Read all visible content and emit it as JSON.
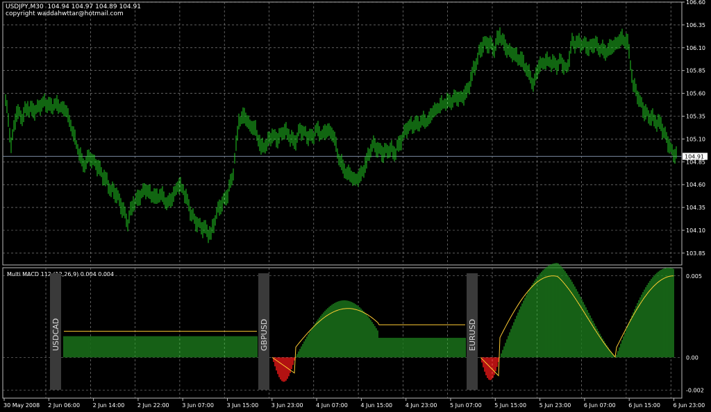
{
  "header": {
    "symbol_line": "USDJPY,M30  104.94 104.97 104.89 104.91",
    "copyright": "copyright waddahwttar@hotmail.com"
  },
  "colors": {
    "background": "#000000",
    "grid": "#9a9a9a",
    "price_bars": "#22cc22",
    "histogram": "#1f8a1f",
    "histogram_negative": "#ff1a1a",
    "signal": "#ffcc33",
    "separator": "#3a3a3a",
    "price_line": "#7a8aa0"
  },
  "price_chart": {
    "type": "bar",
    "ylim": [
      103.72,
      106.6
    ],
    "y_ticks": [
      "106.60",
      "106.35",
      "106.10",
      "105.85",
      "105.60",
      "105.35",
      "105.10",
      "104.85",
      "104.60",
      "104.35",
      "104.10",
      "103.85"
    ],
    "current_price": "104.91",
    "bars": [
      {
        "x": 0,
        "close": 105.55
      },
      {
        "x": 8,
        "close": 105.05
      },
      {
        "x": 16,
        "close": 105.4
      },
      {
        "x": 24,
        "close": 105.35
      },
      {
        "x": 32,
        "close": 105.45
      },
      {
        "x": 40,
        "close": 105.4
      },
      {
        "x": 48,
        "close": 105.45
      },
      {
        "x": 56,
        "close": 105.5
      },
      {
        "x": 64,
        "close": 105.45
      },
      {
        "x": 72,
        "close": 105.48
      },
      {
        "x": 80,
        "close": 105.45
      },
      {
        "x": 88,
        "close": 105.4
      },
      {
        "x": 96,
        "close": 105.2
      },
      {
        "x": 104,
        "close": 105.0
      },
      {
        "x": 112,
        "close": 104.8
      },
      {
        "x": 120,
        "close": 104.9
      },
      {
        "x": 128,
        "close": 104.85
      },
      {
        "x": 136,
        "close": 104.75
      },
      {
        "x": 144,
        "close": 104.65
      },
      {
        "x": 152,
        "close": 104.55
      },
      {
        "x": 160,
        "close": 104.5
      },
      {
        "x": 168,
        "close": 104.35
      },
      {
        "x": 176,
        "close": 104.2
      },
      {
        "x": 184,
        "close": 104.4
      },
      {
        "x": 192,
        "close": 104.45
      },
      {
        "x": 200,
        "close": 104.55
      },
      {
        "x": 208,
        "close": 104.5
      },
      {
        "x": 216,
        "close": 104.45
      },
      {
        "x": 224,
        "close": 104.5
      },
      {
        "x": 232,
        "close": 104.4
      },
      {
        "x": 240,
        "close": 104.45
      },
      {
        "x": 248,
        "close": 104.6
      },
      {
        "x": 256,
        "close": 104.55
      },
      {
        "x": 264,
        "close": 104.35
      },
      {
        "x": 272,
        "close": 104.2
      },
      {
        "x": 280,
        "close": 104.15
      },
      {
        "x": 288,
        "close": 104.1
      },
      {
        "x": 296,
        "close": 104.05
      },
      {
        "x": 304,
        "close": 104.3
      },
      {
        "x": 312,
        "close": 104.4
      },
      {
        "x": 320,
        "close": 104.5
      },
      {
        "x": 328,
        "close": 104.75
      },
      {
        "x": 336,
        "close": 105.3
      },
      {
        "x": 344,
        "close": 105.35
      },
      {
        "x": 352,
        "close": 105.25
      },
      {
        "x": 360,
        "close": 105.2
      },
      {
        "x": 368,
        "close": 105.0
      },
      {
        "x": 376,
        "close": 105.05
      },
      {
        "x": 384,
        "close": 105.15
      },
      {
        "x": 392,
        "close": 105.1
      },
      {
        "x": 400,
        "close": 105.2
      },
      {
        "x": 408,
        "close": 105.15
      },
      {
        "x": 416,
        "close": 105.05
      },
      {
        "x": 424,
        "close": 105.2
      },
      {
        "x": 432,
        "close": 105.15
      },
      {
        "x": 440,
        "close": 105.1
      },
      {
        "x": 448,
        "close": 105.2
      },
      {
        "x": 456,
        "close": 105.15
      },
      {
        "x": 464,
        "close": 105.2
      },
      {
        "x": 472,
        "close": 105.15
      },
      {
        "x": 480,
        "close": 104.9
      },
      {
        "x": 488,
        "close": 104.75
      },
      {
        "x": 496,
        "close": 104.7
      },
      {
        "x": 504,
        "close": 104.65
      },
      {
        "x": 512,
        "close": 104.7
      },
      {
        "x": 520,
        "close": 104.85
      },
      {
        "x": 528,
        "close": 105.05
      },
      {
        "x": 536,
        "close": 105.0
      },
      {
        "x": 544,
        "close": 104.95
      },
      {
        "x": 552,
        "close": 105.0
      },
      {
        "x": 560,
        "close": 104.95
      },
      {
        "x": 568,
        "close": 105.05
      },
      {
        "x": 576,
        "close": 105.2
      },
      {
        "x": 584,
        "close": 105.25
      },
      {
        "x": 592,
        "close": 105.25
      },
      {
        "x": 600,
        "close": 105.3
      },
      {
        "x": 608,
        "close": 105.3
      },
      {
        "x": 616,
        "close": 105.4
      },
      {
        "x": 624,
        "close": 105.45
      },
      {
        "x": 632,
        "close": 105.5
      },
      {
        "x": 640,
        "close": 105.5
      },
      {
        "x": 648,
        "close": 105.55
      },
      {
        "x": 656,
        "close": 105.55
      },
      {
        "x": 664,
        "close": 105.6
      },
      {
        "x": 672,
        "close": 105.8
      },
      {
        "x": 680,
        "close": 106.0
      },
      {
        "x": 688,
        "close": 106.15
      },
      {
        "x": 696,
        "close": 106.15
      },
      {
        "x": 704,
        "close": 106.1
      },
      {
        "x": 712,
        "close": 106.25
      },
      {
        "x": 720,
        "close": 106.1
      },
      {
        "x": 728,
        "close": 106.05
      },
      {
        "x": 736,
        "close": 106.0
      },
      {
        "x": 744,
        "close": 105.95
      },
      {
        "x": 752,
        "close": 105.85
      },
      {
        "x": 760,
        "close": 105.7
      },
      {
        "x": 768,
        "close": 105.9
      },
      {
        "x": 776,
        "close": 105.95
      },
      {
        "x": 784,
        "close": 105.95
      },
      {
        "x": 792,
        "close": 105.9
      },
      {
        "x": 800,
        "close": 105.95
      },
      {
        "x": 808,
        "close": 105.85
      },
      {
        "x": 816,
        "close": 106.15
      },
      {
        "x": 824,
        "close": 106.15
      },
      {
        "x": 832,
        "close": 106.15
      },
      {
        "x": 840,
        "close": 106.1
      },
      {
        "x": 848,
        "close": 106.15
      },
      {
        "x": 856,
        "close": 106.1
      },
      {
        "x": 864,
        "close": 106.05
      },
      {
        "x": 872,
        "close": 106.1
      },
      {
        "x": 880,
        "close": 106.15
      },
      {
        "x": 888,
        "close": 106.2
      },
      {
        "x": 896,
        "close": 106.15
      },
      {
        "x": 904,
        "close": 105.7
      },
      {
        "x": 912,
        "close": 105.55
      },
      {
        "x": 920,
        "close": 105.4
      },
      {
        "x": 928,
        "close": 105.35
      },
      {
        "x": 936,
        "close": 105.3
      },
      {
        "x": 944,
        "close": 105.25
      },
      {
        "x": 952,
        "close": 105.1
      },
      {
        "x": 960,
        "close": 104.95
      },
      {
        "x": 968,
        "close": 104.91
      }
    ]
  },
  "indicator": {
    "title": "Multi MACD 112 (12,26,9) 0.004 0.004",
    "ylim": [
      -0.0025,
      0.0055
    ],
    "y_ticks": [
      {
        "label": "0.005",
        "value": 0.005
      },
      {
        "label": "0.00",
        "value": 0.0
      },
      {
        "label": "-0.002",
        "value": -0.002
      }
    ],
    "sections": [
      {
        "label": "USDCAD",
        "x_start": 80,
        "x_end": 370
      },
      {
        "label": "GBPUSD",
        "x_start": 380,
        "x_end": 670
      },
      {
        "label": "EURUSD",
        "x_start": 680,
        "x_end": 970
      }
    ]
  },
  "x_axis": {
    "labels": [
      "30 May 2008",
      "2 Jun 06:00",
      "2 Jun 14:00",
      "2 Jun 22:00",
      "3 Jun 07:00",
      "3 Jun 15:00",
      "3 Jun 23:00",
      "4 Jun 07:00",
      "4 Jun 15:00",
      "4 Jun 23:00",
      "5 Jun 07:00",
      "5 Jun 15:00",
      "5 Jun 23:00",
      "6 Jun 07:00",
      "6 Jun 15:00",
      "6 Jun 23:00"
    ]
  }
}
